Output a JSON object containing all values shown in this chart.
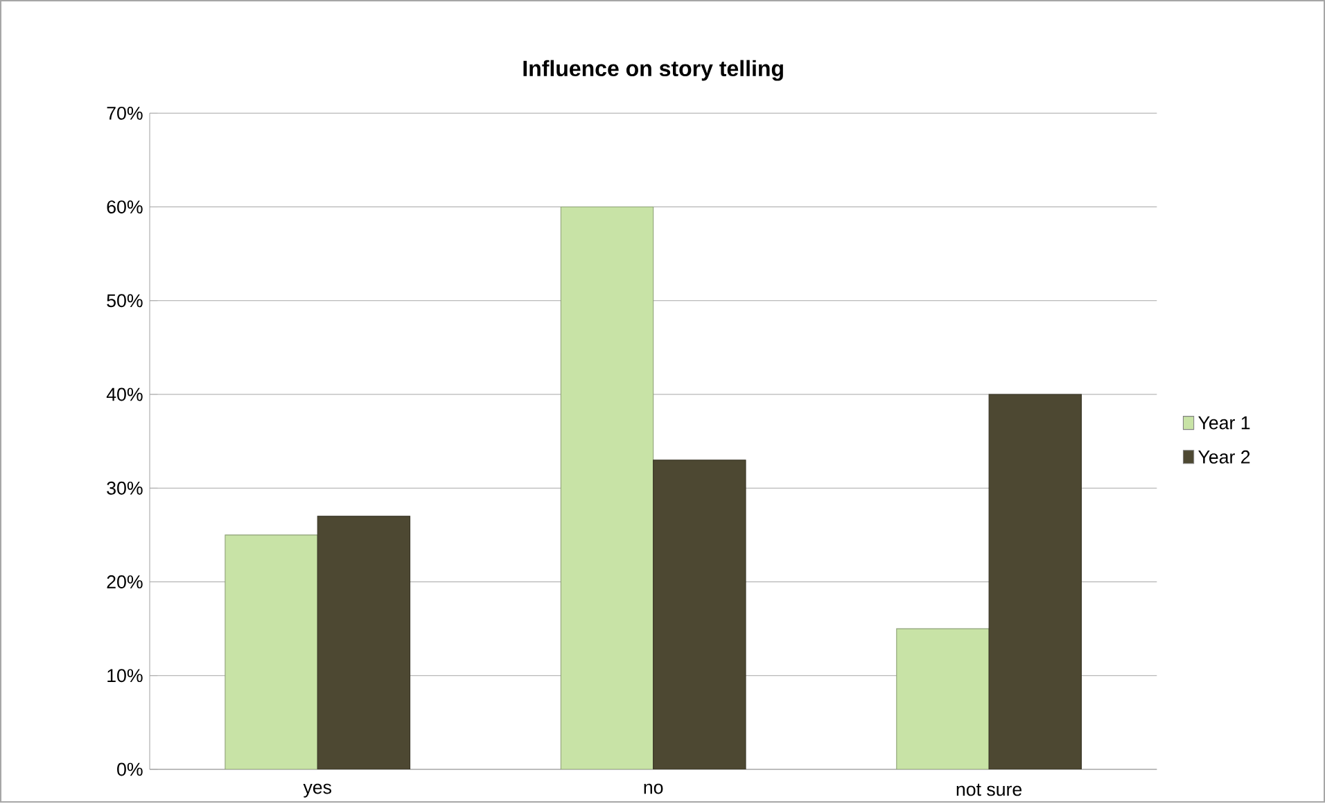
{
  "chart_data": {
    "type": "bar",
    "title": "Influence on story telling",
    "categories": [
      "yes",
      "no",
      "not sure"
    ],
    "series": [
      {
        "name": "Year 1",
        "color": "#c8e3a6",
        "values": [
          25,
          60,
          15
        ]
      },
      {
        "name": "Year 2",
        "color": "#4d4832",
        "values": [
          27,
          33,
          40
        ]
      }
    ],
    "ylim": [
      0,
      70
    ],
    "yticks": [
      {
        "value": 0,
        "label": "0%"
      },
      {
        "value": 10,
        "label": "10%"
      },
      {
        "value": 20,
        "label": "20%"
      },
      {
        "value": 30,
        "label": "30%"
      },
      {
        "value": 40,
        "label": "40%"
      },
      {
        "value": 50,
        "label": "50%"
      },
      {
        "value": 60,
        "label": "60%"
      },
      {
        "value": 70,
        "label": "70%"
      }
    ],
    "grid": "y",
    "legend": "right"
  }
}
